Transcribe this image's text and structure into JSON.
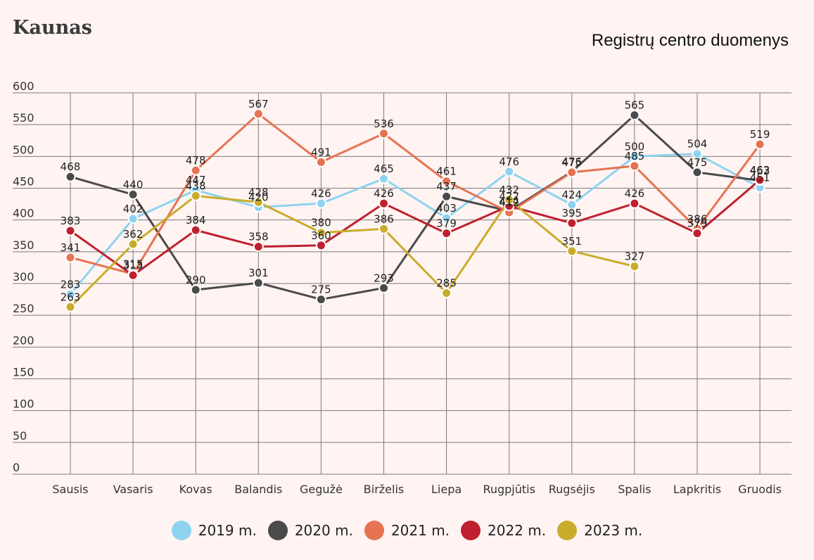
{
  "header": {
    "title": "Kaunas",
    "source": "Registrų centro duomenys"
  },
  "chart_data": {
    "type": "line",
    "title": "Kaunas",
    "categories": [
      "Sausis",
      "Vasaris",
      "Kovas",
      "Balandis",
      "Gegužė",
      "Birželis",
      "Liepa",
      "Rugpjūtis",
      "Rugsėjis",
      "Spalis",
      "Lapkritis",
      "Gruodis"
    ],
    "ylim": [
      0,
      600
    ],
    "yticks": [
      0,
      50,
      100,
      150,
      200,
      250,
      300,
      350,
      400,
      450,
      500,
      550,
      600
    ],
    "grid": true,
    "legend_position": "bottom",
    "series": [
      {
        "name": "2019 m.",
        "color": "#8fd3f0",
        "values": [
          283,
          402,
          447,
          420,
          426,
          465,
          403,
          476,
          424,
          500,
          504,
          451
        ]
      },
      {
        "name": "2020 m.",
        "color": "#4a4a4a",
        "values": [
          468,
          440,
          290,
          301,
          275,
          293,
          437,
          414,
          476,
          565,
          475,
          462
        ]
      },
      {
        "name": "2021 m.",
        "color": "#e67352",
        "values": [
          341,
          315,
          478,
          567,
          491,
          536,
          461,
          412,
          475,
          485,
          386,
          519
        ]
      },
      {
        "name": "2022 m.",
        "color": "#bf2030",
        "values": [
          383,
          313,
          384,
          358,
          360,
          426,
          379,
          422,
          395,
          426,
          379,
          463
        ]
      },
      {
        "name": "2023 m.",
        "color": "#c9ac2c",
        "values": [
          263,
          362,
          438,
          428,
          380,
          386,
          285,
          432,
          351,
          327,
          null,
          null
        ]
      }
    ]
  }
}
